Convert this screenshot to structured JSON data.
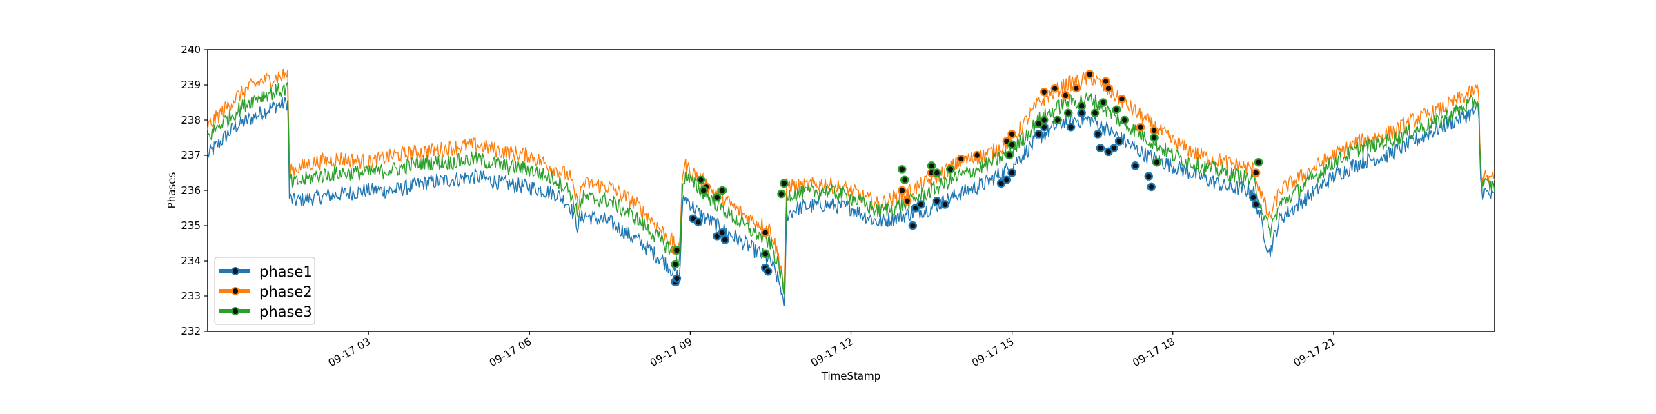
{
  "chart_data": {
    "type": "line",
    "title": "",
    "xlabel": "TimeStamp",
    "ylabel": "Phases",
    "xlim": [
      0,
      24
    ],
    "ylim": [
      232,
      240
    ],
    "x_ticks": [
      {
        "x": 3,
        "label": "09-17 03"
      },
      {
        "x": 6,
        "label": "09-17 06"
      },
      {
        "x": 9,
        "label": "09-17 09"
      },
      {
        "x": 12,
        "label": "09-17 12"
      },
      {
        "x": 15,
        "label": "09-17 15"
      },
      {
        "x": 18,
        "label": "09-17 18"
      },
      {
        "x": 21,
        "label": "09-17 21"
      }
    ],
    "y_ticks": [
      232,
      233,
      234,
      235,
      236,
      237,
      238,
      239,
      240
    ],
    "grid": false,
    "legend_position": "bottom-left",
    "series": [
      {
        "name": "phase1",
        "color": "#1f77b4",
        "x": [
          0.0,
          0.25,
          0.5,
          0.75,
          1.0,
          1.25,
          1.5,
          1.52,
          1.6,
          2.0,
          2.5,
          3.0,
          3.5,
          4.0,
          4.5,
          5.0,
          5.5,
          6.0,
          6.5,
          6.75,
          6.9,
          7.0,
          7.5,
          8.0,
          8.5,
          8.75,
          8.8,
          8.85,
          8.9,
          9.2,
          9.5,
          10.0,
          10.5,
          10.7,
          10.75,
          10.8,
          11.0,
          11.5,
          12.0,
          12.5,
          13.0,
          13.5,
          14.0,
          14.5,
          15.0,
          15.5,
          16.0,
          16.5,
          17.0,
          17.5,
          18.0,
          18.5,
          19.0,
          19.5,
          19.8,
          20.0,
          20.5,
          21.0,
          21.5,
          22.0,
          22.5,
          23.0,
          23.7,
          23.75,
          24.0
        ],
        "y": [
          237.0,
          237.4,
          237.8,
          238.0,
          238.2,
          238.4,
          238.5,
          235.8,
          235.7,
          235.8,
          235.9,
          236.0,
          236.0,
          236.2,
          236.3,
          236.4,
          236.2,
          236.1,
          235.9,
          235.6,
          235.0,
          235.3,
          235.1,
          234.6,
          234.0,
          233.6,
          233.4,
          235.5,
          235.8,
          235.3,
          235.0,
          234.5,
          234.0,
          233.2,
          232.5,
          235.3,
          235.5,
          235.6,
          235.5,
          235.1,
          235.3,
          235.5,
          235.9,
          236.2,
          236.7,
          237.5,
          238.0,
          238.0,
          237.5,
          237.0,
          236.7,
          236.4,
          236.1,
          236.0,
          234.2,
          235.2,
          235.8,
          236.4,
          236.8,
          237.0,
          237.4,
          237.8,
          238.3,
          236.0,
          235.8
        ]
      },
      {
        "name": "phase2",
        "color": "#ff7f0e",
        "x": [
          0.0,
          0.25,
          0.5,
          0.75,
          1.0,
          1.25,
          1.5,
          1.52,
          1.6,
          2.0,
          2.5,
          3.0,
          3.5,
          4.0,
          4.5,
          5.0,
          5.5,
          6.0,
          6.5,
          6.75,
          6.9,
          7.0,
          7.5,
          8.0,
          8.5,
          8.75,
          8.8,
          8.85,
          8.9,
          9.2,
          9.5,
          10.0,
          10.5,
          10.7,
          10.75,
          10.8,
          11.0,
          11.5,
          12.0,
          12.5,
          13.0,
          13.5,
          14.0,
          14.5,
          15.0,
          15.5,
          16.0,
          16.5,
          17.0,
          17.5,
          18.0,
          18.5,
          19.0,
          19.5,
          19.8,
          20.0,
          20.5,
          21.0,
          21.5,
          22.0,
          22.5,
          23.0,
          23.7,
          23.75,
          24.0
        ],
        "y": [
          237.8,
          238.2,
          238.6,
          238.9,
          239.1,
          239.2,
          239.3,
          236.7,
          236.6,
          236.8,
          236.9,
          236.8,
          237.0,
          237.1,
          237.2,
          237.3,
          237.1,
          237.0,
          236.6,
          236.4,
          235.6,
          236.2,
          236.1,
          235.6,
          234.8,
          234.4,
          234.2,
          236.5,
          236.7,
          236.3,
          235.9,
          235.3,
          234.9,
          233.8,
          233.2,
          236.2,
          236.1,
          236.2,
          236.0,
          235.6,
          235.9,
          236.3,
          236.8,
          237.0,
          237.4,
          238.5,
          239.0,
          239.2,
          238.6,
          238.0,
          237.4,
          237.0,
          236.8,
          236.6,
          235.2,
          236.0,
          236.5,
          237.0,
          237.4,
          237.6,
          238.0,
          238.3,
          238.9,
          236.4,
          236.3
        ]
      },
      {
        "name": "phase3",
        "color": "#2ca02c",
        "x": [
          0.0,
          0.25,
          0.5,
          0.75,
          1.0,
          1.25,
          1.5,
          1.52,
          1.6,
          2.0,
          2.5,
          3.0,
          3.5,
          4.0,
          4.5,
          5.0,
          5.5,
          6.0,
          6.5,
          6.75,
          6.9,
          7.0,
          7.5,
          8.0,
          8.5,
          8.75,
          8.8,
          8.85,
          8.9,
          9.2,
          9.5,
          10.0,
          10.5,
          10.7,
          10.75,
          10.8,
          11.0,
          11.5,
          12.0,
          12.5,
          13.0,
          13.5,
          14.0,
          14.5,
          15.0,
          15.5,
          16.0,
          16.5,
          17.0,
          17.5,
          18.0,
          18.5,
          19.0,
          19.5,
          19.8,
          20.0,
          20.5,
          21.0,
          21.5,
          22.0,
          22.5,
          23.0,
          23.7,
          23.75,
          24.0
        ],
        "y": [
          237.5,
          237.9,
          238.2,
          238.5,
          238.7,
          238.8,
          238.9,
          236.3,
          236.2,
          236.4,
          236.5,
          236.5,
          236.6,
          236.8,
          236.8,
          236.9,
          236.7,
          236.6,
          236.3,
          236.0,
          235.3,
          235.8,
          235.7,
          235.2,
          234.5,
          234.2,
          233.8,
          236.1,
          236.4,
          236.0,
          235.6,
          235.0,
          234.5,
          233.6,
          233.0,
          235.9,
          235.9,
          236.0,
          235.8,
          235.4,
          235.6,
          236.0,
          236.4,
          236.7,
          237.1,
          238.0,
          238.5,
          238.6,
          238.0,
          237.5,
          237.0,
          236.7,
          236.5,
          236.3,
          234.8,
          235.6,
          236.2,
          236.8,
          237.2,
          237.4,
          237.7,
          238.0,
          238.6,
          236.2,
          236.1
        ]
      }
    ],
    "anomalies": {
      "phase1": [
        [
          8.72,
          233.4
        ],
        [
          8.75,
          233.5
        ],
        [
          9.05,
          235.2
        ],
        [
          9.15,
          235.1
        ],
        [
          9.5,
          234.7
        ],
        [
          9.6,
          234.8
        ],
        [
          9.65,
          234.6
        ],
        [
          10.4,
          233.8
        ],
        [
          10.45,
          233.7
        ],
        [
          13.15,
          235.0
        ],
        [
          13.2,
          235.5
        ],
        [
          13.3,
          235.6
        ],
        [
          13.6,
          235.7
        ],
        [
          13.75,
          235.6
        ],
        [
          14.8,
          236.2
        ],
        [
          14.9,
          236.3
        ],
        [
          15.0,
          236.5
        ],
        [
          15.5,
          237.6
        ],
        [
          15.6,
          237.8
        ],
        [
          16.1,
          237.8
        ],
        [
          16.3,
          238.2
        ],
        [
          16.6,
          237.6
        ],
        [
          16.65,
          237.2
        ],
        [
          16.8,
          237.1
        ],
        [
          16.9,
          237.2
        ],
        [
          17.0,
          237.4
        ],
        [
          17.3,
          236.7
        ],
        [
          17.55,
          236.4
        ],
        [
          17.6,
          236.1
        ],
        [
          19.5,
          235.8
        ],
        [
          19.55,
          235.6
        ]
      ],
      "phase2": [
        [
          8.72,
          234.3
        ],
        [
          9.2,
          236.3
        ],
        [
          9.3,
          236.1
        ],
        [
          10.4,
          234.8
        ],
        [
          12.95,
          236.0
        ],
        [
          13.05,
          235.7
        ],
        [
          13.5,
          236.5
        ],
        [
          14.05,
          236.9
        ],
        [
          14.35,
          237.0
        ],
        [
          14.9,
          237.4
        ],
        [
          15.0,
          237.6
        ],
        [
          15.6,
          238.8
        ],
        [
          15.8,
          238.9
        ],
        [
          16.0,
          238.7
        ],
        [
          16.2,
          238.9
        ],
        [
          16.45,
          239.3
        ],
        [
          16.75,
          239.1
        ],
        [
          16.8,
          238.9
        ],
        [
          17.05,
          238.6
        ],
        [
          17.4,
          237.8
        ],
        [
          17.65,
          237.7
        ],
        [
          19.55,
          236.5
        ]
      ],
      "phase3": [
        [
          8.72,
          233.9
        ],
        [
          8.75,
          234.3
        ],
        [
          9.2,
          236.3
        ],
        [
          9.25,
          236.0
        ],
        [
          9.5,
          235.8
        ],
        [
          9.6,
          236.0
        ],
        [
          10.4,
          234.2
        ],
        [
          10.7,
          235.9
        ],
        [
          10.75,
          236.2
        ],
        [
          12.95,
          236.6
        ],
        [
          13.0,
          236.3
        ],
        [
          13.5,
          236.7
        ],
        [
          13.6,
          236.5
        ],
        [
          13.85,
          236.6
        ],
        [
          14.95,
          237.0
        ],
        [
          15.0,
          237.3
        ],
        [
          15.5,
          237.9
        ],
        [
          15.6,
          238.0
        ],
        [
          15.85,
          238.0
        ],
        [
          16.05,
          238.2
        ],
        [
          16.3,
          238.4
        ],
        [
          16.55,
          238.2
        ],
        [
          16.7,
          238.5
        ],
        [
          16.95,
          238.3
        ],
        [
          17.1,
          238.0
        ],
        [
          17.65,
          237.5
        ],
        [
          17.7,
          236.8
        ],
        [
          19.6,
          236.8
        ]
      ]
    },
    "legend": [
      {
        "name": "phase1",
        "color": "#1f77b4"
      },
      {
        "name": "phase2",
        "color": "#ff7f0e"
      },
      {
        "name": "phase3",
        "color": "#2ca02c"
      }
    ]
  }
}
